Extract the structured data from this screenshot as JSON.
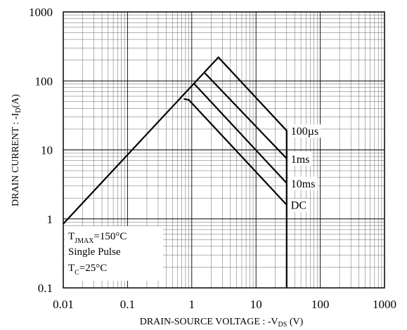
{
  "chart_data": {
    "type": "line",
    "xscale": "log",
    "yscale": "log",
    "xlim": [
      0.01,
      1000
    ],
    "ylim": [
      0.1,
      1000
    ],
    "grid": true,
    "xlabel": {
      "main": "DRAIN-SOURCE VOLTAGE : -V",
      "sub": "DS",
      "tail": " (V)"
    },
    "ylabel": {
      "main": "DRAIN CURRENT : -I",
      "sub": "D",
      "tail": "(A)"
    },
    "x_ticks": [
      {
        "value": 0.01,
        "label": "0.01"
      },
      {
        "value": 0.1,
        "label": "0.1"
      },
      {
        "value": 1,
        "label": "1"
      },
      {
        "value": 10,
        "label": "10"
      },
      {
        "value": 100,
        "label": "100"
      },
      {
        "value": 1000,
        "label": "1000"
      }
    ],
    "y_ticks": [
      {
        "value": 0.1,
        "label": "0.1"
      },
      {
        "value": 1,
        "label": "1"
      },
      {
        "value": 10,
        "label": "10"
      },
      {
        "value": 100,
        "label": "100"
      },
      {
        "value": 1000,
        "label": "1000"
      }
    ],
    "series": [
      {
        "name": "100µs",
        "x": [
          0.01,
          2.6,
          30,
          30
        ],
        "y": [
          0.85,
          220,
          19,
          0.1
        ]
      },
      {
        "name": "1ms",
        "x": [
          1.6,
          30
        ],
        "y": [
          130,
          7.5
        ]
      },
      {
        "name": "10ms",
        "x": [
          1.1,
          30
        ],
        "y": [
          90,
          3.3
        ]
      },
      {
        "name": "DC",
        "x": [
          0.75,
          0.9,
          30
        ],
        "y": [
          55,
          53,
          1.6
        ]
      }
    ],
    "annotation": {
      "tj_main": "T",
      "tj_sub": "JMAX",
      "tj_tail": "=150°C",
      "pulse": "Single Pulse",
      "tc_main": "T",
      "tc_sub": "C",
      "tc_tail": "=25°C"
    }
  }
}
